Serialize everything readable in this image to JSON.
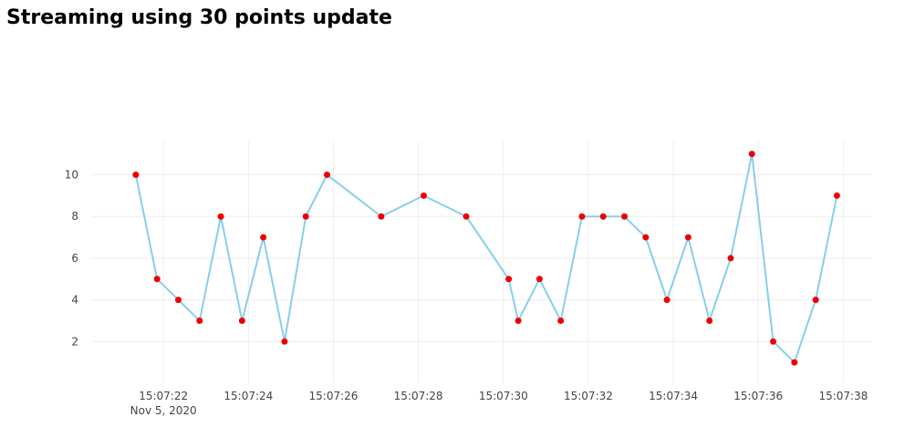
{
  "page": {
    "title": "Streaming using 30 points update"
  },
  "chart_data": {
    "type": "line",
    "title": "Streaming using 30 points update",
    "xlabel": "",
    "ylabel": "",
    "x_axis_type": "time",
    "x_date_label": "Nov 5, 2020",
    "x_ticks": [
      "15:07:22",
      "15:07:24",
      "15:07:26",
      "15:07:28",
      "15:07:30",
      "15:07:32",
      "15:07:34",
      "15:07:36",
      "15:07:38"
    ],
    "y_ticks": [
      2,
      4,
      6,
      8,
      10
    ],
    "xlim": [
      "15:07:20.300",
      "15:07:38.700"
    ],
    "ylim": [
      0,
      11.6
    ],
    "grid": true,
    "line_color": "#87ceeb",
    "marker_color": "#ee0000",
    "series": [
      {
        "x": [
          "15:07:21.350",
          "15:07:21.850",
          "15:07:22.350",
          "15:07:22.850",
          "15:07:23.350",
          "15:07:23.850",
          "15:07:24.350",
          "15:07:24.850",
          "15:07:25.350",
          "15:07:25.850",
          "15:07:27.125",
          "15:07:28.125",
          "15:07:29.125",
          "15:07:30.125",
          "15:07:30.350",
          "15:07:30.850",
          "15:07:31.350",
          "15:07:31.850",
          "15:07:32.350",
          "15:07:32.850",
          "15:07:33.350",
          "15:07:33.850",
          "15:07:34.350",
          "15:07:34.850",
          "15:07:35.350",
          "15:07:35.850",
          "15:07:36.350",
          "15:07:36.850",
          "15:07:37.350",
          "15:07:37.850"
        ],
        "y": [
          10,
          5,
          4,
          3,
          8,
          3,
          7,
          2,
          8,
          10,
          8,
          9,
          8,
          5,
          3,
          5,
          3,
          8,
          8,
          8,
          7,
          4,
          7,
          3,
          6,
          11,
          2,
          1,
          4,
          9
        ]
      }
    ]
  }
}
